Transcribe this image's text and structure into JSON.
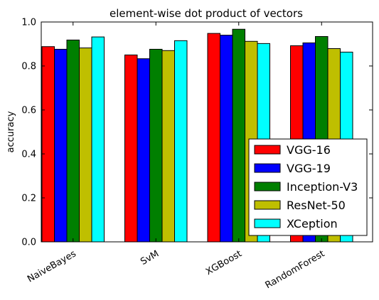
{
  "chart_data": {
    "type": "bar",
    "title": "element-wise dot product of vectors",
    "xlabel": "",
    "ylabel": "accuracy",
    "ylim": [
      0.0,
      1.0
    ],
    "yticks": [
      "0.0",
      "0.2",
      "0.4",
      "0.6",
      "0.8",
      "1.0"
    ],
    "categories": [
      "NaiveBayes",
      "SvM",
      "XGBoost",
      "RandomForest"
    ],
    "series": [
      {
        "name": "VGG-16",
        "color": "#ff0000",
        "values": [
          0.888,
          0.85,
          0.948,
          0.892
        ]
      },
      {
        "name": "VGG-19",
        "color": "#0000ff",
        "values": [
          0.876,
          0.833,
          0.94,
          0.905
        ]
      },
      {
        "name": "Inception-V3",
        "color": "#007f00",
        "values": [
          0.918,
          0.876,
          0.967,
          0.934
        ]
      },
      {
        "name": "ResNet-50",
        "color": "#bfbf00",
        "values": [
          0.882,
          0.87,
          0.912,
          0.879
        ]
      },
      {
        "name": "XCeption",
        "color": "#00ffff",
        "values": [
          0.932,
          0.915,
          0.902,
          0.863
        ]
      }
    ],
    "grid": false,
    "legend_position": "lower-right"
  }
}
